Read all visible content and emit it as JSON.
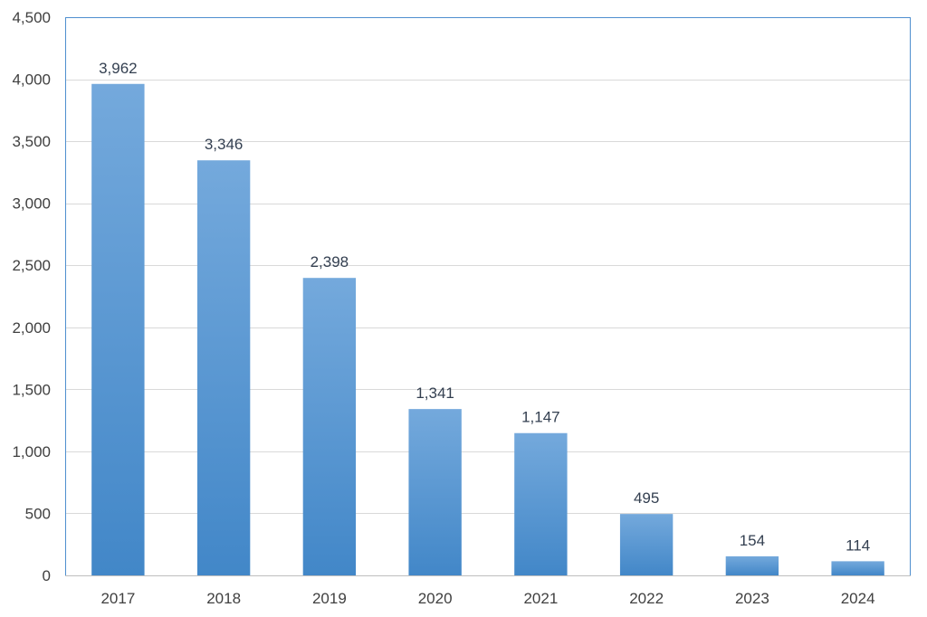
{
  "chart_data": {
    "type": "bar",
    "title": "",
    "xlabel": "",
    "ylabel": "",
    "categories": [
      "2017",
      "2018",
      "2019",
      "2020",
      "2021",
      "2022",
      "2023",
      "2024"
    ],
    "values": [
      3962,
      3346,
      2398,
      1341,
      1147,
      495,
      154,
      114
    ],
    "data_labels": [
      "3,962",
      "3,346",
      "2,398",
      "1,341",
      "1,147",
      "495",
      "154",
      "114"
    ],
    "ylim": [
      0,
      4500
    ],
    "yticks": [
      0,
      500,
      1000,
      1500,
      2000,
      2500,
      3000,
      3500,
      4000,
      4500
    ],
    "ytick_labels": [
      "0",
      "500",
      "1,000",
      "1,500",
      "2,000",
      "2,500",
      "3,000",
      "3,500",
      "4,000",
      "4,500"
    ],
    "grid": true,
    "legend": "none",
    "colors": {
      "bar_top": "#74a9dc",
      "bar_bottom": "#4287c8",
      "grid": "#d9d9d9",
      "frame": "#4f8fcf",
      "tick_text": "#404040",
      "label_text": "#333f50"
    }
  }
}
